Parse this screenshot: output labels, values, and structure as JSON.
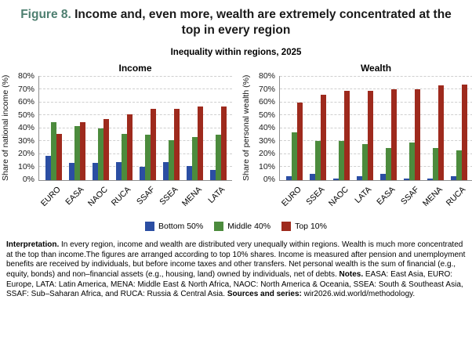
{
  "title": {
    "figure_label": "Figure 8.",
    "text": " Income and, even more, wealth are extremely concentrated at the top in every region"
  },
  "subtitle": "Inequality within regions, 2025",
  "colors": {
    "figure_label_accent": "#4e7f70",
    "bottom50": "#2b4ea3",
    "middle40": "#4c8b3d",
    "top10": "#9e2a1d",
    "gridline": "#cfcfcf",
    "axis": "#8f8f8f"
  },
  "legend": [
    {
      "label": "Bottom 50%",
      "color": "#2b4ea3"
    },
    {
      "label": "Middle 40%",
      "color": "#4c8b3d"
    },
    {
      "label": "Top 10%",
      "color": "#9e2a1d"
    }
  ],
  "chart_data": [
    {
      "type": "bar",
      "title": "Income",
      "ylabel": "Share of national income (%)",
      "categories": [
        "EURO",
        "EASA",
        "NAOC",
        "RUCA",
        "SSAF",
        "SSEA",
        "MENA",
        "LATA"
      ],
      "series": [
        {
          "name": "Bottom 50%",
          "values": [
            19,
            13,
            13,
            14,
            10,
            14,
            11,
            8
          ]
        },
        {
          "name": "Middle 40%",
          "values": [
            45,
            42,
            40,
            36,
            35,
            31,
            33,
            35
          ]
        },
        {
          "name": "Top 10%",
          "values": [
            36,
            45,
            47,
            51,
            55,
            55,
            57,
            57
          ]
        }
      ],
      "ylim": [
        0,
        80
      ],
      "ytick_step": 10,
      "ytick_suffix": "%",
      "grid": true,
      "legend_position": "bottom-shared"
    },
    {
      "type": "bar",
      "title": "Wealth",
      "ylabel": "Share of personal wealth (%)",
      "categories": [
        "EURO",
        "SSEA",
        "NAOC",
        "LATA",
        "EASA",
        "SSAF",
        "MENA",
        "RUCA"
      ],
      "series": [
        {
          "name": "Bottom 50%",
          "values": [
            3,
            5,
            1,
            3,
            5,
            1,
            1,
            3
          ]
        },
        {
          "name": "Middle 40%",
          "values": [
            37,
            30,
            30,
            28,
            25,
            29,
            25,
            23
          ]
        },
        {
          "name": "Top 10%",
          "values": [
            60,
            66,
            69,
            69,
            70,
            70,
            73,
            74
          ]
        }
      ],
      "ylim": [
        0,
        80
      ],
      "ytick_step": 10,
      "ytick_suffix": "%",
      "grid": true,
      "legend_position": "bottom-shared"
    }
  ],
  "footnote": {
    "segments": [
      {
        "text": "Interpretation.",
        "bold": true
      },
      {
        "text": " In every region, income and wealth are distributed very unequally within regions. Wealth is much more concentrated at the top than income.The figures are arranged according to top 10% shares. Income is measured after pension and unemployment benefits are received by individuals, but before income taxes and other transfers. Net personal wealth is the sum of financial (e.g., equity, bonds) and non–financial assets (e.g., housing, land) owned by individuals, net of debts. ",
        "bold": false
      },
      {
        "text": "Notes.",
        "bold": true
      },
      {
        "text": " EASA: East Asia, EURO: Europe, LATA: Latin America, MENA: Middle East & North Africa, NAOC: North America & Oceania, SSEA: South & Southeast Asia, SSAF: Sub–Saharan Africa, and RUCA: Russia & Central Asia. ",
        "bold": false
      },
      {
        "text": "Sources and series:",
        "bold": true
      },
      {
        "text": " wir2026.wid.world/methodology.",
        "bold": false
      }
    ]
  }
}
